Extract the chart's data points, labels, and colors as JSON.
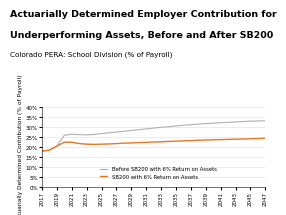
{
  "title_line1": "Actuarially Determined Employer Contribution for",
  "title_line2": "Underperforming Assets, Before and After SB200",
  "subtitle": "Colorado PERA: School Division (% of Payroll)",
  "ylabel": "Actuarially Determined Contribution (% of Payroll)",
  "years_before": [
    2017,
    2018,
    2019,
    2020,
    2021,
    2022,
    2023,
    2024,
    2025,
    2026,
    2027,
    2028,
    2029,
    2030,
    2031,
    2032,
    2033,
    2034,
    2035,
    2036,
    2037,
    2038,
    2039,
    2040,
    2041,
    2042,
    2043,
    2044,
    2045,
    2046,
    2047
  ],
  "values_before": [
    18.0,
    18.5,
    20.5,
    26.0,
    26.5,
    26.3,
    26.2,
    26.4,
    26.8,
    27.2,
    27.6,
    28.0,
    28.4,
    28.8,
    29.2,
    29.6,
    30.0,
    30.3,
    30.7,
    31.0,
    31.3,
    31.6,
    31.9,
    32.1,
    32.3,
    32.5,
    32.7,
    32.9,
    33.1,
    33.2,
    33.3
  ],
  "years_sb200": [
    2017,
    2018,
    2019,
    2020,
    2021,
    2022,
    2023,
    2024,
    2025,
    2026,
    2027,
    2028,
    2029,
    2030,
    2031,
    2032,
    2033,
    2034,
    2035,
    2036,
    2037,
    2038,
    2039,
    2040,
    2041,
    2042,
    2043,
    2044,
    2045,
    2046,
    2047
  ],
  "values_sb200": [
    18.0,
    18.5,
    20.5,
    22.5,
    22.5,
    21.8,
    21.5,
    21.4,
    21.5,
    21.6,
    21.8,
    22.0,
    22.1,
    22.3,
    22.4,
    22.6,
    22.7,
    22.9,
    23.0,
    23.2,
    23.3,
    23.5,
    23.6,
    23.7,
    23.8,
    23.9,
    24.0,
    24.1,
    24.2,
    24.3,
    24.5
  ],
  "color_before": "#b0b0b0",
  "color_sb200": "#e87722",
  "legend_before": "Before SB200 with 6% Return on Assets",
  "legend_sb200": "SB200 with 6% Return on Assets",
  "ylim": [
    0,
    40
  ],
  "yticks": [
    0,
    5,
    10,
    15,
    20,
    25,
    30,
    35,
    40
  ],
  "xlim_start": 2017,
  "xlim_end": 2047,
  "background_color": "#ffffff",
  "title_fontsize": 6.8,
  "subtitle_fontsize": 5.2,
  "ylabel_fontsize": 4.2,
  "tick_fontsize": 4.0,
  "legend_fontsize": 3.8
}
